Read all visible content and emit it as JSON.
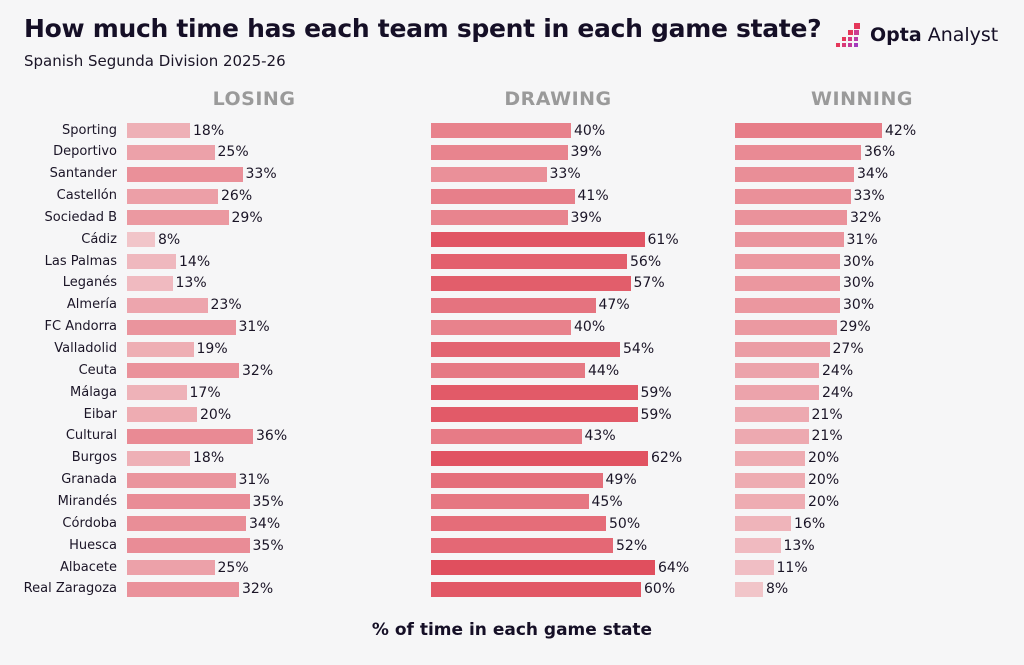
{
  "header": {
    "title": "How much time has each team spent in each game state?",
    "subtitle": "Spanish Segunda Division 2025-26",
    "logo_bold": "Opta",
    "logo_light": " Analyst"
  },
  "chart_data": {
    "type": "bar",
    "orientation": "horizontal",
    "title": "How much time has each team spent in each game state?",
    "subtitle": "Spanish Segunda Division 2025-26",
    "xlabel": "% of time in each game state",
    "ylabel": "",
    "value_suffix": "%",
    "xlim": [
      0,
      100
    ],
    "grid": false,
    "categories": [
      "Sporting",
      "Deportivo",
      "Santander",
      "Castellón",
      "Sociedad B",
      "Cádiz",
      "Las Palmas",
      "Leganés",
      "Almería",
      "FC Andorra",
      "Valladolid",
      "Ceuta",
      "Málaga",
      "Eibar",
      "Cultural",
      "Burgos",
      "Granada",
      "Mirandés",
      "Córdoba",
      "Huesca",
      "Albacete",
      "Real Zaragoza"
    ],
    "series": [
      {
        "name": "LOSING",
        "values": [
          18,
          25,
          33,
          26,
          29,
          8,
          14,
          13,
          23,
          31,
          19,
          32,
          17,
          20,
          36,
          18,
          31,
          35,
          34,
          35,
          25,
          32
        ]
      },
      {
        "name": "DRAWING",
        "values": [
          40,
          39,
          33,
          41,
          39,
          61,
          56,
          57,
          47,
          40,
          54,
          44,
          59,
          59,
          43,
          62,
          49,
          45,
          50,
          52,
          64,
          60
        ]
      },
      {
        "name": "WINNING",
        "values": [
          42,
          36,
          34,
          33,
          32,
          31,
          30,
          30,
          30,
          29,
          27,
          24,
          24,
          21,
          21,
          20,
          20,
          20,
          16,
          13,
          11,
          8
        ]
      }
    ],
    "color_scale": {
      "low": "#f2cbcf",
      "high": "#e04d5c"
    }
  }
}
